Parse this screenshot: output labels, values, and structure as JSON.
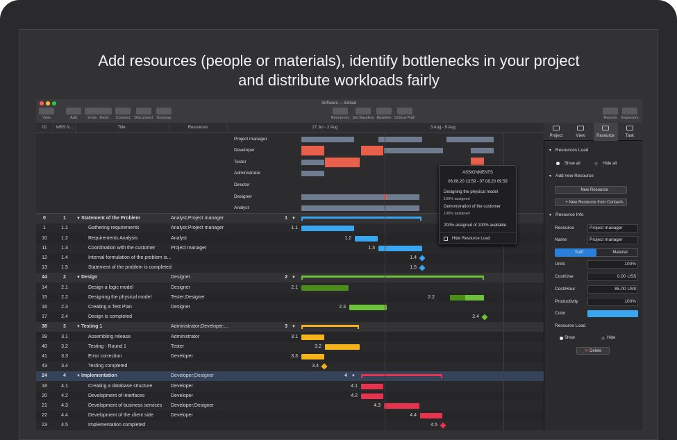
{
  "headline": [
    "Add resources (people or materials), identify bottlenecks in your project",
    "and distribute workloads fairly"
  ],
  "window": {
    "title": "Software — Edited"
  },
  "toolbar": {
    "left": [
      "View",
      "Add",
      "Undo",
      "Redo",
      "Connect",
      "Disconnect",
      "Ungroup"
    ],
    "center": [
      "Resources",
      "Set Baseline",
      "Baseline",
      "Critical Path"
    ],
    "right": [
      "Reports",
      "Inspectors"
    ]
  },
  "table": {
    "columns": [
      "ID",
      "WBS N...",
      "Title",
      "Resources"
    ],
    "rows": [
      {
        "id": 0,
        "wbs": "1",
        "title": "Statement of the Problem",
        "resources": "Analyst;Project manager"
      },
      {
        "id": 1,
        "wbs": "1.1",
        "title": "Gathering requirements",
        "resources": "Analyst;Project manager"
      },
      {
        "id": 10,
        "wbs": "1.2",
        "title": "Requirements Analysis",
        "resources": "Analyst"
      },
      {
        "id": 11,
        "wbs": "1.3",
        "title": "Coordination with the customer",
        "resources": "Project manager"
      },
      {
        "id": 12,
        "wbs": "1.4",
        "title": "Internal formulation of the problem is..."
      },
      {
        "id": 13,
        "wbs": "1.5",
        "title": "Statement of the problem is completed"
      },
      {
        "id": 44,
        "wbs": "2",
        "title": "Design",
        "resources": "Designer"
      },
      {
        "id": 14,
        "wbs": "2.1",
        "title": "Design a logic model",
        "resources": "Designer"
      },
      {
        "id": 15,
        "wbs": "2.2",
        "title": "Designing the physical model",
        "resources": "Tester;Designer"
      },
      {
        "id": 16,
        "wbs": "2.3",
        "title": "Creating a Test Plan",
        "resources": "Designer"
      },
      {
        "id": 17,
        "wbs": "2.4",
        "title": "Design is completed"
      },
      {
        "id": 38,
        "wbs": "3",
        "title": "Testing 1",
        "resources": "Administrator;Developer;..."
      },
      {
        "id": 39,
        "wbs": "3.1",
        "title": "Assembling release",
        "resources": "Administrator"
      },
      {
        "id": 40,
        "wbs": "3.2",
        "title": "Testing - Round 1",
        "resources": "Tester"
      },
      {
        "id": 41,
        "wbs": "3.3",
        "title": "Error correction",
        "resources": "Developer"
      },
      {
        "id": 43,
        "wbs": "3.4",
        "title": "Testing completed"
      },
      {
        "id": 24,
        "wbs": "4",
        "title": "Implementation",
        "resources": "Developer;Designer"
      },
      {
        "id": 18,
        "wbs": "4.1",
        "title": "Creating a database structure",
        "resources": "Developer"
      },
      {
        "id": 20,
        "wbs": "4.2",
        "title": "Development of interfaces",
        "resources": "Developer"
      },
      {
        "id": 21,
        "wbs": "4.3",
        "title": "Development of business services",
        "resources": "Developer;Designer"
      },
      {
        "id": 22,
        "wbs": "4.4",
        "title": "Development of the client side",
        "resources": "Developer"
      },
      {
        "id": 23,
        "wbs": "4.5",
        "title": "Implementation completed"
      }
    ]
  },
  "timeline": {
    "weeks": [
      "27 Jul - 2 Aug",
      "3 Aug - 9 Aug"
    ]
  },
  "resource_load": {
    "resources": [
      "Project manager",
      "Developer",
      "Tester",
      "Administrator",
      "Director",
      "Designer",
      "Analyst"
    ]
  },
  "popup": {
    "title": "ASSIGNMENTS",
    "period": "06.08.20 13:59 - 07.08.20 09:59",
    "items": [
      {
        "task": "Designing the physical model",
        "load": "100% assigned"
      },
      {
        "task": "Demonstration of the customer",
        "load": "100% assigned"
      }
    ],
    "summary": "200% assigned of 100% available",
    "action": "Hide Resource Load"
  },
  "inspector": {
    "tabs": [
      "Project",
      "View",
      "Resource",
      "Task"
    ],
    "resources_load": {
      "title": "Resources Load",
      "options": [
        "Show all",
        "Hide all"
      ]
    },
    "add_new": {
      "title": "Add new Resource",
      "buttons": [
        "New Resource",
        "+ New Resource from Contacts"
      ]
    },
    "info": {
      "title": "Resource Info",
      "fields": [
        [
          "Resource",
          "Project manager"
        ],
        [
          "Name",
          "Project manager"
        ]
      ],
      "types": [
        "Staff",
        "Material"
      ],
      "values": [
        [
          "Units",
          "100%"
        ],
        [
          "Cost/Use",
          "0.00 US$"
        ],
        [
          "Cost/Hour",
          "85.00 US$"
        ],
        [
          "Productivity",
          "100%"
        ]
      ],
      "color_label": "Color",
      "load_label": "Resource Load",
      "load_options": [
        "Show",
        "Hide"
      ],
      "delete": "Delete"
    }
  }
}
